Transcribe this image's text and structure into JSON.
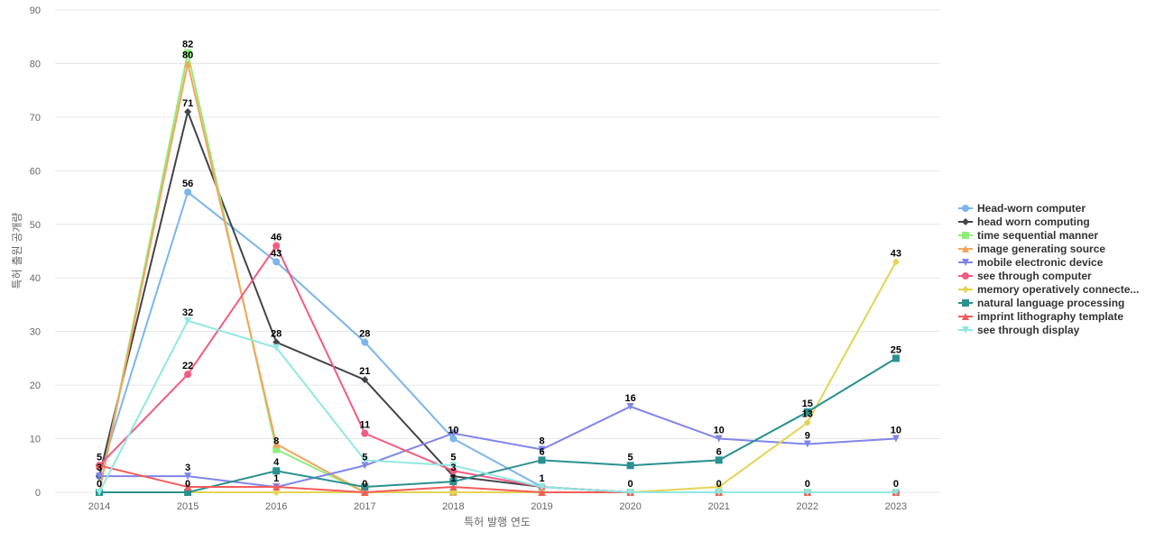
{
  "chart_data": {
    "type": "line",
    "xlabel": "특허 발행 연도",
    "ylabel": "특허 출원 공개량",
    "x": [
      "2014",
      "2015",
      "2016",
      "2017",
      "2018",
      "2019",
      "2020",
      "2021",
      "2022",
      "2023"
    ],
    "ylim": [
      0,
      90
    ],
    "yticks": [
      0,
      10,
      20,
      30,
      40,
      50,
      60,
      70,
      80,
      90
    ],
    "grid": true,
    "legend_position": "right",
    "series": [
      {
        "name": "Head-worn computer",
        "color": "#7cb5ec",
        "marker": "circle",
        "values": [
          3,
          56,
          43,
          28,
          10,
          1,
          0,
          0,
          0,
          0
        ]
      },
      {
        "name": "head worn computing",
        "color": "#434348",
        "marker": "diamond",
        "values": [
          3,
          71,
          28,
          21,
          3,
          1,
          0,
          0,
          0,
          0
        ]
      },
      {
        "name": "time sequential manner",
        "color": "#90ed7d",
        "marker": "square",
        "values": [
          0,
          82,
          8,
          0,
          0,
          0,
          0,
          0,
          0,
          0
        ]
      },
      {
        "name": "image generating source",
        "color": "#f7a35c",
        "marker": "triangle",
        "values": [
          0,
          80,
          9,
          0,
          0,
          0,
          0,
          0,
          0,
          0
        ]
      },
      {
        "name": "mobile electronic device",
        "color": "#8085e9",
        "marker": "triangle-down",
        "values": [
          3,
          3,
          1,
          5,
          11,
          8,
          16,
          10,
          9,
          10
        ]
      },
      {
        "name": "see through computer",
        "color": "#f15c80",
        "marker": "circle",
        "values": [
          5,
          22,
          46,
          11,
          4,
          1,
          0,
          0,
          0,
          0
        ]
      },
      {
        "name": "memory operatively connecte...",
        "color": "#e4d354",
        "marker": "diamond",
        "values": [
          0,
          0,
          0,
          0,
          0,
          0,
          0,
          1,
          13,
          43
        ]
      },
      {
        "name": "natural language processing",
        "color": "#2b908f",
        "marker": "square",
        "values": [
          0,
          0,
          4,
          1,
          2,
          6,
          5,
          6,
          15,
          25
        ]
      },
      {
        "name": "imprint lithography template",
        "color": "#f45b5b",
        "marker": "triangle",
        "values": [
          5,
          1,
          1,
          0,
          1,
          0,
          0,
          0,
          0,
          0
        ]
      },
      {
        "name": "see through display",
        "color": "#91e8e1",
        "marker": "triangle-down",
        "values": [
          0,
          32,
          27,
          6,
          5,
          1,
          0,
          0,
          0,
          0
        ]
      }
    ],
    "data_labels": [
      {
        "x": "2014",
        "text": "5",
        "y": 5
      },
      {
        "x": "2014",
        "text": "3",
        "y": 3
      },
      {
        "x": "2014",
        "text": "0",
        "y": 0
      },
      {
        "x": "2015",
        "text": "82",
        "y": 82
      },
      {
        "x": "2015",
        "text": "80",
        "y": 80
      },
      {
        "x": "2015",
        "text": "71",
        "y": 71
      },
      {
        "x": "2015",
        "text": "56",
        "y": 56
      },
      {
        "x": "2015",
        "text": "32",
        "y": 32
      },
      {
        "x": "2015",
        "text": "22",
        "y": 22
      },
      {
        "x": "2015",
        "text": "3",
        "y": 3
      },
      {
        "x": "2015",
        "text": "0",
        "y": 0
      },
      {
        "x": "2016",
        "text": "46",
        "y": 46
      },
      {
        "x": "2016",
        "text": "43",
        "y": 43
      },
      {
        "x": "2016",
        "text": "28",
        "y": 28
      },
      {
        "x": "2016",
        "text": "8",
        "y": 8
      },
      {
        "x": "2016",
        "text": "4",
        "y": 4
      },
      {
        "x": "2016",
        "text": "1",
        "y": 1
      },
      {
        "x": "2017",
        "text": "28",
        "y": 28
      },
      {
        "x": "2017",
        "text": "21",
        "y": 21
      },
      {
        "x": "2017",
        "text": "11",
        "y": 11
      },
      {
        "x": "2017",
        "text": "5",
        "y": 5
      },
      {
        "x": "2017",
        "text": "0",
        "y": 0
      },
      {
        "x": "2018",
        "text": "10",
        "y": 10
      },
      {
        "x": "2018",
        "text": "5",
        "y": 5
      },
      {
        "x": "2018",
        "text": "3",
        "y": 3
      },
      {
        "x": "2018",
        "text": "1",
        "y": 1
      },
      {
        "x": "2019",
        "text": "8",
        "y": 8
      },
      {
        "x": "2019",
        "text": "6",
        "y": 6
      },
      {
        "x": "2019",
        "text": "1",
        "y": 1
      },
      {
        "x": "2020",
        "text": "16",
        "y": 16
      },
      {
        "x": "2020",
        "text": "5",
        "y": 5
      },
      {
        "x": "2020",
        "text": "0",
        "y": 0
      },
      {
        "x": "2021",
        "text": "10",
        "y": 10
      },
      {
        "x": "2021",
        "text": "6",
        "y": 6
      },
      {
        "x": "2021",
        "text": "0",
        "y": 0
      },
      {
        "x": "2022",
        "text": "15",
        "y": 15
      },
      {
        "x": "2022",
        "text": "13",
        "y": 13
      },
      {
        "x": "2022",
        "text": "9",
        "y": 9
      },
      {
        "x": "2022",
        "text": "0",
        "y": 0
      },
      {
        "x": "2023",
        "text": "43",
        "y": 43
      },
      {
        "x": "2023",
        "text": "25",
        "y": 25
      },
      {
        "x": "2023",
        "text": "10",
        "y": 10
      },
      {
        "x": "2023",
        "text": "0",
        "y": 0
      }
    ]
  }
}
